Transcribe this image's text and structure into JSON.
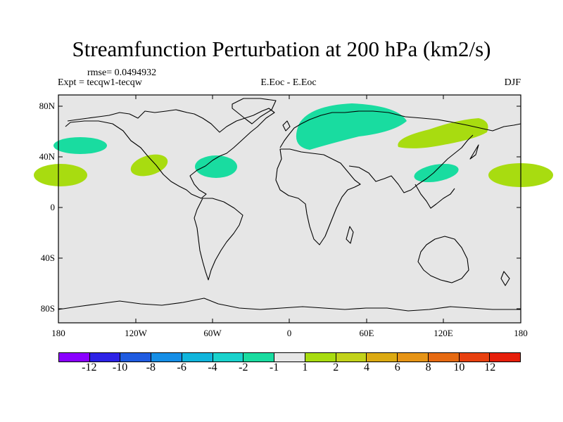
{
  "title": "Streamfunction Perturbation at 200 hPa (km2/s)",
  "rmse": "rmse= 0.0494932",
  "expt": "Expt = tecqw1-tecqw",
  "center_label": "E.Eoc - E.Eoc",
  "season": "DJF",
  "map_data": {
    "type": "contour-map",
    "projection": "cylindrical equidistant",
    "lon_range": [
      -180,
      180
    ],
    "lat_range": [
      -90,
      90
    ],
    "x_ticks": [
      "180",
      "120W",
      "60W",
      "0",
      "60E",
      "120E",
      "180"
    ],
    "y_ticks": [
      "80N",
      "40N",
      "0",
      "40S",
      "80S"
    ],
    "regions": [
      {
        "name": "north-pacific-negative",
        "level": "-2 to -1",
        "lon": -158,
        "lat": 48
      },
      {
        "name": "central-pacific-positive",
        "level": "1 to 2",
        "lon": -177,
        "lat": 24
      },
      {
        "name": "eastern-pacific-positive",
        "level": "1 to 2",
        "lon": -106,
        "lat": 33
      },
      {
        "name": "atlantic-negative",
        "level": "-2 to -1",
        "lon": -55,
        "lat": 32
      },
      {
        "name": "eurasia-negative",
        "level": "-2 to -1",
        "lon": 45,
        "lat": 68
      },
      {
        "name": "china-negative",
        "level": "-2 to -1",
        "lon": 115,
        "lat": 27
      },
      {
        "name": "siberia-japan-positive",
        "level": "1 to 2",
        "lon": 130,
        "lat": 50
      },
      {
        "name": "west-pacific-positive",
        "level": "1 to 2",
        "lon": 170,
        "lat": 24
      }
    ]
  },
  "colorbar": {
    "colors": [
      "#8a00ff",
      "#2d22e6",
      "#1f5be0",
      "#158ee6",
      "#10b5dc",
      "#19d2cc",
      "#19dca0",
      "#e6e6e6",
      "#a8dc10",
      "#c2d21a",
      "#dcaa12",
      "#e69416",
      "#e66a12",
      "#e8400f",
      "#e61e0a"
    ],
    "labels": [
      "-12",
      "-10",
      "-8",
      "-6",
      "-4",
      "-2",
      "-1",
      "1",
      "2",
      "4",
      "6",
      "8",
      "10",
      "12"
    ]
  }
}
